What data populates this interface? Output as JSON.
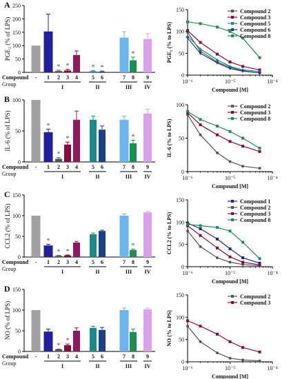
{
  "colors": {
    "gray": "#a0a0a0",
    "navy": "#1f1fa0",
    "darkgray": "#555555",
    "maroon": "#8b0a3c",
    "plum": "#8f1a5e",
    "teal": "#1a8a8a",
    "blue2": "#1a3f8f",
    "lightblue": "#6ab4f0",
    "green": "#1f8f4f",
    "violet": "#dca0ee",
    "darkblue": "#1f1f9f"
  },
  "chart_data": [
    {
      "panel": "A",
      "type": "bar",
      "ylabel": "PGE₂ (% of LPS)",
      "ylim": [
        0,
        250
      ],
      "yticks": [
        "0",
        "50",
        "100",
        "150",
        "200",
        "250"
      ],
      "row_label_compound": "Compound",
      "row_label_group": "Group",
      "categories": [
        "-",
        "1",
        "2",
        "3",
        "4",
        "5",
        "6",
        "7",
        "8",
        "9"
      ],
      "values": [
        100,
        153,
        5,
        7,
        65,
        4,
        3,
        130,
        45,
        125
      ],
      "errors": [
        0,
        65,
        3,
        4,
        15,
        2,
        2,
        22,
        12,
        20
      ],
      "significance": [
        false,
        false,
        true,
        true,
        false,
        true,
        true,
        false,
        true,
        false
      ],
      "groups": [
        "I",
        "II",
        "III",
        "IV"
      ]
    },
    {
      "panel": "A",
      "type": "line",
      "ylabel": "PGE₂ (% to LPS)",
      "xlabel": "Compound [M]",
      "xscale": "log",
      "xticks": [
        "10⁻⁶",
        "10⁻⁵",
        "10⁻⁴"
      ],
      "yticks": [
        "0",
        "50",
        "100",
        "150"
      ],
      "ylim": [
        0,
        150
      ],
      "x": [
        1e-06,
        2e-06,
        5e-06,
        1e-05,
        2e-05,
        5e-05
      ],
      "series": [
        {
          "name": "Compound 2",
          "values": [
            98,
            55,
            30,
            18,
            10,
            5
          ]
        },
        {
          "name": "Compound 3",
          "values": [
            102,
            75,
            48,
            30,
            20,
            12
          ]
        },
        {
          "name": "Compound 5",
          "values": [
            90,
            60,
            35,
            20,
            12,
            8
          ]
        },
        {
          "name": "Compound 6",
          "values": [
            85,
            50,
            28,
            15,
            9,
            5
          ]
        },
        {
          "name": "Compound 8",
          "values": [
            122,
            118,
            110,
            100,
            85,
            40
          ]
        }
      ]
    },
    {
      "panel": "B",
      "type": "bar",
      "ylabel": "IL-6 (% of LPS)",
      "ylim": [
        0,
        100
      ],
      "yticks": [
        "0",
        "50",
        "100"
      ],
      "row_label_compound": "Compound",
      "row_label_group": "Group",
      "categories": [
        "-",
        "1",
        "2",
        "3",
        "4",
        "5",
        "6",
        "7",
        "8",
        "9"
      ],
      "values": [
        100,
        48,
        5,
        28,
        68,
        68,
        52,
        68,
        30,
        78
      ],
      "errors": [
        0,
        5,
        2,
        4,
        14,
        6,
        6,
        6,
        5,
        7
      ],
      "significance": [
        false,
        true,
        true,
        true,
        false,
        false,
        false,
        false,
        true,
        false
      ],
      "groups": [
        "I",
        "II",
        "III",
        "IV"
      ]
    },
    {
      "panel": "B",
      "type": "line",
      "ylabel": "IL-6 (% to LPS)",
      "xlabel": "Compound [M]",
      "xscale": "log",
      "xticks": [
        "10⁻⁶",
        "10⁻⁵",
        "10⁻⁴"
      ],
      "yticks": [
        "0",
        "50",
        "100"
      ],
      "ylim": [
        0,
        100
      ],
      "x": [
        1e-06,
        2e-06,
        5e-06,
        1e-05,
        2e-05,
        5e-05
      ],
      "series": [
        {
          "name": "Compound 2",
          "values": [
            85,
            55,
            28,
            15,
            8,
            5
          ]
        },
        {
          "name": "Compound 3",
          "values": [
            88,
            70,
            55,
            45,
            38,
            30
          ]
        },
        {
          "name": "Compound 8",
          "values": [
            90,
            78,
            68,
            60,
            50,
            35
          ]
        }
      ]
    },
    {
      "panel": "C",
      "type": "bar",
      "ylabel": "CCL2 (% of LPS)",
      "ylim": [
        0,
        150
      ],
      "yticks": [
        "0",
        "50",
        "100",
        "150"
      ],
      "row_label_compound": "Compound",
      "row_label_group": "Group",
      "categories": [
        "-",
        "1",
        "2",
        "3",
        "4",
        "5",
        "6",
        "7",
        "8",
        "9"
      ],
      "values": [
        100,
        28,
        3,
        4,
        35,
        55,
        63,
        100,
        17,
        108
      ],
      "errors": [
        0,
        3,
        1,
        1,
        3,
        3,
        2,
        4,
        2,
        2
      ],
      "significance": [
        false,
        true,
        true,
        true,
        false,
        false,
        false,
        false,
        true,
        false
      ],
      "groups": [
        "I",
        "II",
        "III",
        "IV"
      ]
    },
    {
      "panel": "C",
      "type": "line",
      "ylabel": "CCL2 (% to LPS)",
      "xlabel": "Compound [M]",
      "xscale": "log",
      "xticks": [
        "10⁻⁶",
        "10⁻⁵",
        "10⁻⁴"
      ],
      "yticks": [
        "0",
        "50",
        "100",
        "150"
      ],
      "ylim": [
        0,
        150
      ],
      "x": [
        1e-06,
        2e-06,
        5e-06,
        1e-05,
        2e-05,
        5e-05
      ],
      "series": [
        {
          "name": "Compound 1",
          "values": [
            98,
            85,
            62,
            40,
            20,
            8
          ]
        },
        {
          "name": "Compound 2",
          "values": [
            80,
            45,
            20,
            10,
            5,
            2
          ]
        },
        {
          "name": "Compound 3",
          "values": [
            92,
            70,
            42,
            22,
            10,
            4
          ]
        },
        {
          "name": "Compound 8",
          "values": [
            95,
            92,
            88,
            80,
            55,
            18
          ]
        }
      ]
    },
    {
      "panel": "D",
      "type": "bar",
      "ylabel": "NO (% of LPS)",
      "ylim": [
        0,
        150
      ],
      "yticks": [
        "0",
        "50",
        "100",
        "150"
      ],
      "row_label_compound": "Compound",
      "row_label_group": "Group",
      "categories": [
        "-",
        "1",
        "2",
        "3",
        "4",
        "5",
        "6",
        "7",
        "8",
        "9"
      ],
      "values": [
        100,
        48,
        5,
        15,
        50,
        57,
        52,
        100,
        47,
        102
      ],
      "errors": [
        0,
        6,
        1,
        3,
        7,
        4,
        6,
        5,
        7,
        3
      ],
      "significance": [
        false,
        false,
        true,
        true,
        false,
        false,
        false,
        false,
        false,
        false
      ],
      "groups": [
        "I",
        "II",
        "III",
        "IV"
      ]
    },
    {
      "panel": "D",
      "type": "line",
      "ylabel": "NO (% to LPS)",
      "xlabel": "Compound [M]",
      "xscale": "log",
      "xticks": [
        "10⁻⁶",
        "10⁻⁵",
        "10⁻⁴"
      ],
      "yticks": [
        "0",
        "50",
        "100",
        "150"
      ],
      "ylim": [
        0,
        150
      ],
      "x": [
        1e-06,
        2e-06,
        5e-06,
        1e-05,
        2e-05,
        5e-05
      ],
      "series": [
        {
          "name": "Compound 2",
          "values": [
            80,
            45,
            20,
            8,
            4,
            2
          ]
        },
        {
          "name": "Compound 3",
          "values": [
            92,
            80,
            62,
            45,
            32,
            22
          ]
        }
      ]
    }
  ]
}
